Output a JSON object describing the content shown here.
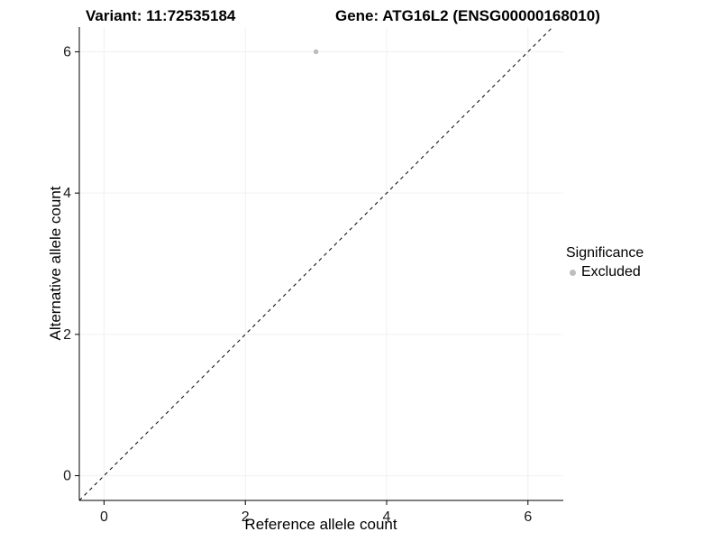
{
  "titles": {
    "variant": "Variant: 11:72535184",
    "gene": "Gene: ATG16L2 (ENSG00000168010)"
  },
  "chart_data": {
    "type": "scatter",
    "title_left": "Variant: 11:72535184",
    "title_right": "Gene: ATG16L2 (ENSG00000168010)",
    "xlabel": "Reference allele count",
    "ylabel": "Alternative allele count",
    "xlim": [
      -0.35,
      6.5
    ],
    "ylim": [
      -0.35,
      6.35
    ],
    "xticks": [
      0,
      2,
      4,
      6
    ],
    "yticks": [
      0,
      2,
      4,
      6
    ],
    "grid": true,
    "points": [
      {
        "x": 3,
        "y": 6,
        "series": "Excluded"
      }
    ],
    "identity_line": {
      "style": "dashed",
      "color": "#000000",
      "equation": "y = x"
    },
    "legend": {
      "title": "Significance",
      "position": "right",
      "entries": [
        {
          "label": "Excluded",
          "color": "#bdbdbd"
        }
      ]
    }
  },
  "colors": {
    "point": "#bdbdbd",
    "axis": "#000000",
    "grid_major": "#f0f0f0",
    "tick_label": "#1a1a1a"
  }
}
